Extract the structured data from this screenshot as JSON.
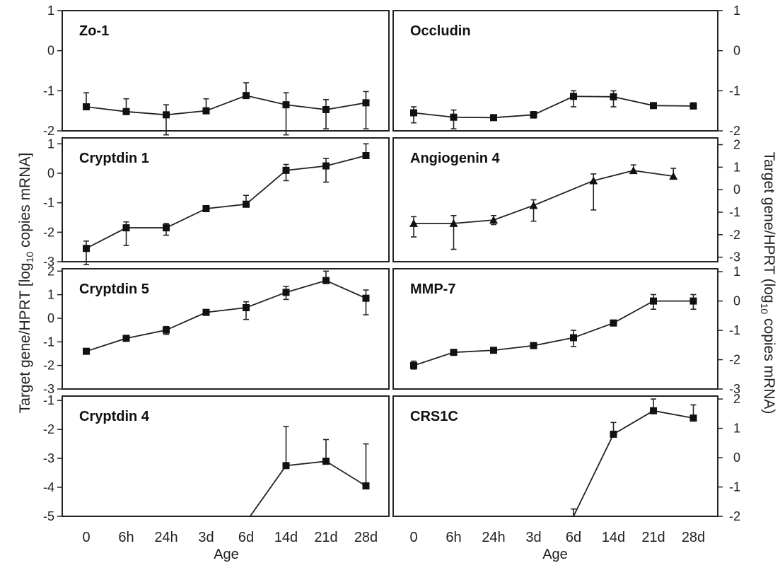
{
  "figure": {
    "ylabel_left": {
      "pre": "Target gene/HPRT [log",
      "sub": "10",
      "post": " copies mRNA]"
    },
    "ylabel_right": {
      "pre": "Target gene/HPRT (log",
      "sub": "10",
      "post": " copies mRNA)"
    },
    "xlabel": "Age",
    "x_categories": [
      "0",
      "6h",
      "24h",
      "3d",
      "6d",
      "14d",
      "21d",
      "28d"
    ]
  },
  "chart_data": [
    {
      "type": "line",
      "title": "Zo-1",
      "marker": "square",
      "y_axis_side": "left",
      "ylim": [
        -2,
        1
      ],
      "yticks": [
        1,
        0,
        -1,
        -2
      ],
      "values": [
        -1.4,
        -1.52,
        -1.6,
        -1.5,
        -1.12,
        -1.35,
        -1.47,
        -1.3
      ],
      "err_upper": [
        -1.05,
        -1.2,
        -1.35,
        -1.2,
        -0.8,
        -1.05,
        -1.22,
        -1.02
      ],
      "err_lower": [
        null,
        null,
        -2.1,
        null,
        null,
        -2.1,
        -1.95,
        -1.95
      ]
    },
    {
      "type": "line",
      "title": "Occludin",
      "marker": "square",
      "y_axis_side": "right",
      "ylim": [
        -2,
        1
      ],
      "yticks": [
        1,
        0,
        -1,
        -2
      ],
      "values": [
        -1.55,
        -1.66,
        -1.67,
        -1.6,
        -1.14,
        -1.15,
        -1.37,
        -1.38
      ],
      "err_upper": [
        -1.4,
        -1.48,
        -1.6,
        -1.52,
        -1.0,
        -1.0,
        null,
        -1.3
      ],
      "err_lower": [
        -1.8,
        -1.95,
        -1.72,
        -1.68,
        -1.4,
        -1.4,
        null,
        -1.45
      ]
    },
    {
      "type": "line",
      "title": "Cryptdin 1",
      "marker": "square",
      "y_axis_side": "left",
      "ylim": [
        -3,
        1.2
      ],
      "yticks": [
        1,
        0,
        -1,
        -2,
        -3
      ],
      "values": [
        -2.55,
        -1.85,
        -1.85,
        -1.2,
        -1.05,
        0.1,
        0.25,
        0.6
      ],
      "err_upper": [
        -2.3,
        -1.65,
        -1.7,
        -1.1,
        -0.75,
        0.3,
        0.5,
        1.0
      ],
      "err_lower": [
        -3.1,
        -2.45,
        -2.1,
        -1.28,
        null,
        -0.25,
        -0.3,
        null
      ]
    },
    {
      "type": "line",
      "title": "Angiogenin 4",
      "marker": "triangle",
      "y_axis_side": "right",
      "ylim": [
        -3.2,
        2.3
      ],
      "yticks": [
        2,
        1,
        0,
        -1,
        -2,
        -3
      ],
      "values": [
        -1.5,
        -1.5,
        -1.35,
        -0.7,
        0.4,
        0.85,
        0.6
      ],
      "err_upper": [
        -1.2,
        -1.15,
        -1.15,
        -0.45,
        0.7,
        1.1,
        0.95
      ],
      "err_lower": [
        -2.1,
        -2.65,
        -1.55,
        -1.4,
        -0.9,
        null,
        null
      ],
      "x_positions": [
        0,
        1,
        2,
        3,
        4.5,
        5.5,
        6.5
      ]
    },
    {
      "type": "line",
      "title": "Cryptdin 5",
      "marker": "square",
      "y_axis_side": "left",
      "ylim": [
        -3,
        2.1
      ],
      "yticks": [
        2,
        1,
        0,
        -1,
        -2,
        -3
      ],
      "values": [
        -1.4,
        -0.85,
        -0.5,
        0.25,
        0.45,
        1.1,
        1.6,
        0.85
      ],
      "err_upper": [
        null,
        null,
        -0.35,
        null,
        0.7,
        1.35,
        2.0,
        1.2
      ],
      "err_lower": [
        null,
        null,
        -0.68,
        null,
        -0.05,
        0.8,
        null,
        0.15
      ]
    },
    {
      "type": "line",
      "title": "MMP-7",
      "marker": "square",
      "y_axis_side": "right",
      "ylim": [
        -3,
        1.1
      ],
      "yticks": [
        1,
        0,
        -1,
        -2,
        -3
      ],
      "values": [
        -2.2,
        -1.75,
        -1.68,
        -1.52,
        -1.25,
        -0.75,
        0,
        0
      ],
      "err_upper": [
        -2.05,
        null,
        null,
        -1.42,
        -1.0,
        -0.65,
        0.22,
        0.22
      ],
      "err_lower": [
        -2.32,
        null,
        null,
        -1.6,
        -1.55,
        -0.82,
        -0.28,
        -0.28
      ]
    },
    {
      "type": "line",
      "title": "Cryptdin 4",
      "marker": "square",
      "y_axis_side": "left",
      "ylim": [
        -5,
        -0.85
      ],
      "yticks": [
        -1,
        -2,
        -3,
        -4,
        -5
      ],
      "values": [
        -5.0,
        -3.25,
        -3.1,
        -3.95
      ],
      "err_upper": [
        null,
        -1.9,
        -2.35,
        -2.5
      ],
      "err_lower": [
        null,
        null,
        null,
        null
      ],
      "x_positions": [
        4.1,
        5,
        6,
        7
      ],
      "markers_from": 1
    },
    {
      "type": "line",
      "title": "CRS1C",
      "marker": "square",
      "y_axis_side": "right",
      "ylim": [
        -2,
        2.1
      ],
      "yticks": [
        2,
        1,
        0,
        -1,
        -2
      ],
      "values": [
        -2.0,
        0.8,
        1.6,
        1.35
      ],
      "err_upper": [
        -1.75,
        1.2,
        2.0,
        1.8
      ],
      "err_lower": [
        null,
        null,
        null,
        null
      ],
      "x_positions": [
        4,
        5,
        6,
        7
      ],
      "markers_from": 1
    }
  ]
}
